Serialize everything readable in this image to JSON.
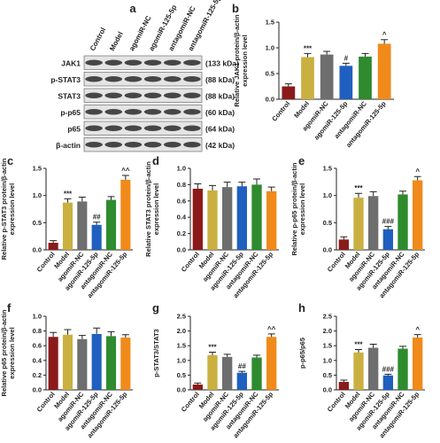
{
  "blot": {
    "label": "a",
    "lanes": [
      "Control",
      "Model",
      "agomiR-NC",
      "agomiR-125-5p",
      "antagomiR-NC",
      "antagomiR-125-5p"
    ],
    "rows": [
      {
        "name": "JAK1",
        "size": "(133 kDa)"
      },
      {
        "name": "p-STAT3",
        "size": "(88 kDa)"
      },
      {
        "name": "STAT3",
        "size": "(88 kDa)"
      },
      {
        "name": "p-p65",
        "size": "(60 kDa)"
      },
      {
        "name": "p65",
        "size": "(64 kDa)"
      },
      {
        "name": "β-actin",
        "size": "(42 kDa)"
      }
    ]
  },
  "chart_data": [
    {
      "type": "bar",
      "label": "b",
      "ylabel": [
        "Relative JAK1 protein/β-actin",
        "expression level"
      ],
      "categories": [
        "Control",
        "Model",
        "agomiR-NC",
        "agomiR-125-5p",
        "antagomiR-NC",
        "antagomiR-125-5p"
      ],
      "colors": [
        "#8b1a1a",
        "#c9b040",
        "#6e6e6e",
        "#1f5fbf",
        "#2e8b2e",
        "#f08a1a"
      ],
      "values": [
        0.25,
        0.82,
        0.87,
        0.65,
        0.83,
        1.08
      ],
      "errors": [
        0.05,
        0.07,
        0.06,
        0.05,
        0.06,
        0.08
      ],
      "annotations": [
        null,
        "***",
        null,
        "#",
        null,
        "^"
      ],
      "annotation_colors": [
        null,
        "#222222",
        null,
        "#1f5fbf",
        null,
        "#f08a1a"
      ],
      "ylim": [
        0,
        1.5
      ],
      "yticks": [
        {
          "value": 0,
          "label": "0.0"
        },
        0.5,
        {
          "value": 1,
          "label": "1.0"
        },
        1.5
      ]
    },
    {
      "type": "bar",
      "label": "c",
      "ylabel": [
        "Relative p-STAT3 protein/β-actin",
        "expression level"
      ],
      "categories": [
        "Control",
        "Model",
        "agomiR-NC",
        "agomiR-125-5p",
        "antagomiR-NC",
        "antagomiR-125-5p"
      ],
      "colors": [
        "#8b1a1a",
        "#c9b040",
        "#6e6e6e",
        "#1f5fbf",
        "#2e8b2e",
        "#f08a1a"
      ],
      "values": [
        0.13,
        0.87,
        0.89,
        0.46,
        0.92,
        1.29
      ],
      "errors": [
        0.04,
        0.07,
        0.08,
        0.05,
        0.06,
        0.08
      ],
      "annotations": [
        null,
        "***",
        null,
        "##",
        null,
        "^^"
      ],
      "annotation_colors": [
        null,
        "#222222",
        null,
        "#1f5fbf",
        null,
        "#f08a1a"
      ],
      "ylim": [
        0,
        1.5
      ],
      "yticks": [
        {
          "value": 0,
          "label": "0.0"
        },
        0.5,
        {
          "value": 1,
          "label": "1.0"
        },
        1.5
      ]
    },
    {
      "type": "bar",
      "label": "d",
      "ylabel": [
        "Relative STAT3 protein/β-actin",
        "expression level"
      ],
      "categories": [
        "Control",
        "Model",
        "agomiR-NC",
        "agomiR-125-5p",
        "antagomiR-NC",
        "antagomiR-125-5p"
      ],
      "colors": [
        "#8b1a1a",
        "#c9b040",
        "#6e6e6e",
        "#1f5fbf",
        "#2e8b2e",
        "#f08a1a"
      ],
      "values": [
        0.75,
        0.73,
        0.77,
        0.78,
        0.8,
        0.72
      ],
      "errors": [
        0.06,
        0.06,
        0.06,
        0.05,
        0.07,
        0.05
      ],
      "ylim": [
        0,
        1
      ],
      "yticks": [
        {
          "value": 0,
          "label": "0.0"
        },
        0.2,
        0.4,
        0.6,
        0.8,
        {
          "value": 1,
          "label": "1.0"
        }
      ]
    },
    {
      "type": "bar",
      "label": "e",
      "ylabel": [
        "Relative p-p65 protein/β-actin",
        "expression level"
      ],
      "categories": [
        "Control",
        "Model",
        "agomiR-NC",
        "agomiR-125-5p",
        "antagomiR-NC",
        "antagomiR-125-5p"
      ],
      "colors": [
        "#8b1a1a",
        "#c9b040",
        "#6e6e6e",
        "#1f5fbf",
        "#2e8b2e",
        "#f08a1a"
      ],
      "values": [
        0.19,
        0.96,
        0.99,
        0.38,
        1.02,
        1.28
      ],
      "errors": [
        0.05,
        0.08,
        0.08,
        0.05,
        0.06,
        0.07
      ],
      "annotations": [
        null,
        "***",
        null,
        "###",
        null,
        "^"
      ],
      "annotation_colors": [
        null,
        "#222222",
        null,
        "#1f5fbf",
        null,
        "#f08a1a"
      ],
      "ylim": [
        0,
        1.5
      ],
      "yticks": [
        {
          "value": 0,
          "label": "0.0"
        },
        0.5,
        {
          "value": 1,
          "label": "1.0"
        },
        1.5
      ]
    },
    {
      "type": "bar",
      "label": "f",
      "ylabel": [
        "Relative p65 protein/β-actin",
        "expression level"
      ],
      "categories": [
        "Control",
        "Model",
        "agomiR-NC",
        "agomiR-125-5p",
        "antagomiR-NC",
        "antagomiR-125-5p"
      ],
      "colors": [
        "#8b1a1a",
        "#c9b040",
        "#6e6e6e",
        "#1f5fbf",
        "#2e8b2e",
        "#f08a1a"
      ],
      "values": [
        0.72,
        0.75,
        0.69,
        0.76,
        0.73,
        0.71
      ],
      "errors": [
        0.06,
        0.07,
        0.05,
        0.08,
        0.06,
        0.04
      ],
      "ylim": [
        0,
        1
      ],
      "yticks": [
        {
          "value": 0,
          "label": "0.0"
        },
        0.2,
        0.4,
        0.6,
        0.8,
        {
          "value": 1,
          "label": "1.0"
        }
      ]
    },
    {
      "type": "bar",
      "label": "g",
      "ylabel": [
        "p-STAT3/STAT3"
      ],
      "categories": [
        "Control",
        "Model",
        "agomiR-NC",
        "agomiR-125-5p",
        "antagomiR-NC",
        "antagomiR-125-5p"
      ],
      "colors": [
        "#8b1a1a",
        "#c9b040",
        "#6e6e6e",
        "#1f5fbf",
        "#2e8b2e",
        "#f08a1a"
      ],
      "values": [
        0.18,
        1.18,
        1.12,
        0.58,
        1.1,
        1.8
      ],
      "errors": [
        0.05,
        0.1,
        0.09,
        0.05,
        0.08,
        0.1
      ],
      "annotations": [
        null,
        "***",
        null,
        "##",
        null,
        "^^"
      ],
      "annotation_colors": [
        null,
        "#222222",
        null,
        "#1f5fbf",
        null,
        "#2e8b2e"
      ],
      "ylim": [
        0,
        2.5
      ],
      "yticks": [
        {
          "value": 0,
          "label": "0.0"
        },
        0.5,
        {
          "value": 1,
          "label": "1.0"
        },
        1.5,
        {
          "value": 2,
          "label": "2.0"
        },
        2.5
      ]
    },
    {
      "type": "bar",
      "label": "h",
      "ylabel": [
        "p-p65/p65"
      ],
      "categories": [
        "Control",
        "Model",
        "agomiR-NC",
        "agomiR-125-5p",
        "antagomiR-NC",
        "antagomiR-125-5p"
      ],
      "colors": [
        "#8b1a1a",
        "#c9b040",
        "#6e6e6e",
        "#1f5fbf",
        "#2e8b2e",
        "#f08a1a"
      ],
      "values": [
        0.27,
        1.27,
        1.43,
        0.49,
        1.4,
        1.78
      ],
      "errors": [
        0.06,
        0.1,
        0.12,
        0.04,
        0.08,
        0.1
      ],
      "annotations": [
        null,
        "***",
        null,
        "###",
        null,
        "^"
      ],
      "annotation_colors": [
        null,
        "#222222",
        null,
        "#1f5fbf",
        null,
        "#f08a1a"
      ],
      "ylim": [
        0,
        2.5
      ],
      "yticks": [
        {
          "value": 0,
          "label": "0.0"
        },
        0.5,
        {
          "value": 1,
          "label": "1.0"
        },
        1.5,
        {
          "value": 2,
          "label": "2.0"
        },
        2.5
      ]
    }
  ]
}
